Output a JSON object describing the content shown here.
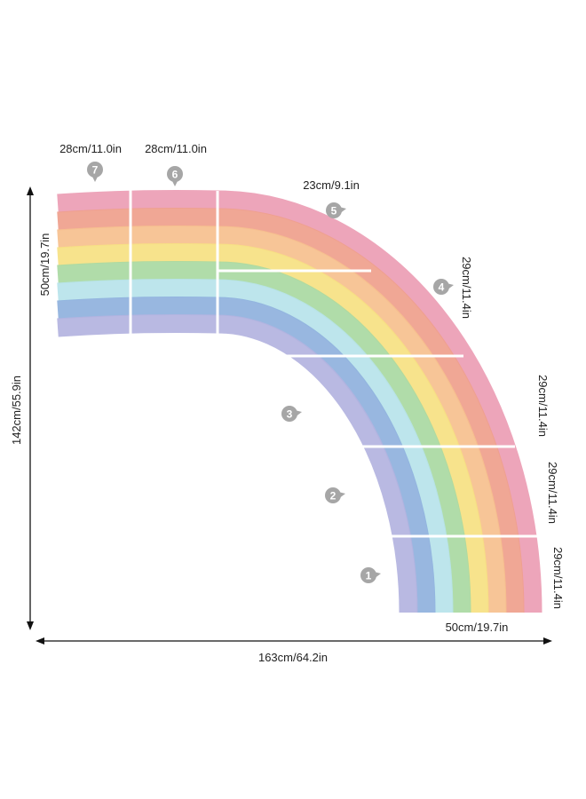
{
  "band_colors": [
    "#eb9db4",
    "#ef9f8c",
    "#f6c08e",
    "#f6e182",
    "#a9d9a2",
    "#b7e3ea",
    "#8fb1dd",
    "#b3b3df"
  ],
  "badge_color": "#a6a6a6",
  "segments": [
    {
      "number": "1",
      "size": "29cm/11.4in"
    },
    {
      "number": "2",
      "size": "29cm/11.4in"
    },
    {
      "number": "3",
      "size": "29cm/11.4in"
    },
    {
      "number": "4",
      "size": "29cm/11.4in"
    },
    {
      "number": "5",
      "size": "23cm/9.1in"
    },
    {
      "number": "6",
      "size": "28cm/11.0in"
    },
    {
      "number": "7",
      "size": "28cm/11.0in"
    }
  ],
  "band_width_left": "50cm/19.7in",
  "band_width_bottom": "50cm/19.7in",
  "total_height": "142cm/55.9in",
  "total_width": "163cm/64.2in"
}
